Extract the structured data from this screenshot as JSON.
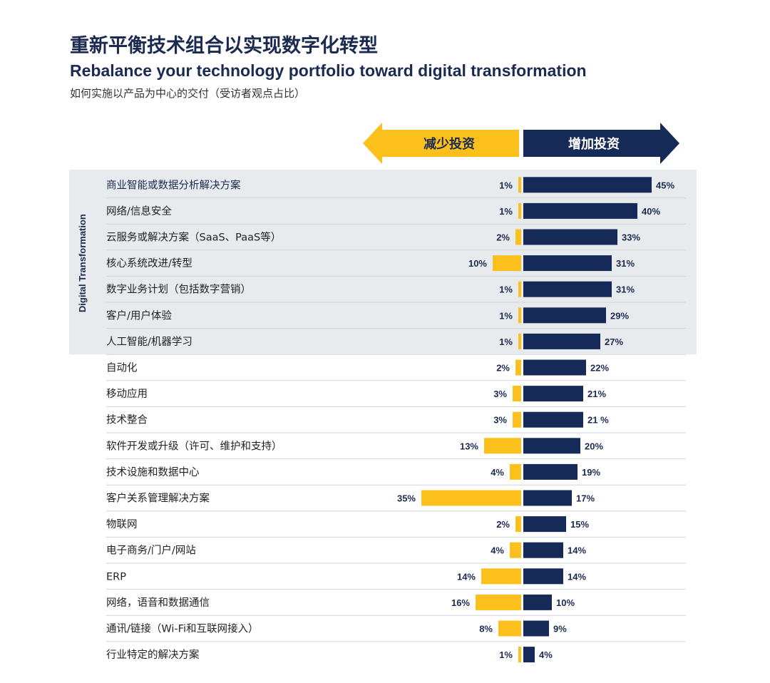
{
  "title": "重新平衡技术组合以实现数字化转型",
  "subtitle": "Rebalance your technology portfolio toward digital transformation",
  "note": "如何实施以产品为中心的交付（受访者观点占比）",
  "colors": {
    "decrease": "#fcc01d",
    "increase": "#152a57",
    "band": "#e8ebee",
    "divider": "#cfd4da"
  },
  "chart_data": {
    "type": "bar",
    "orientation": "horizontal-diverging",
    "legend": {
      "decrease": "减少投资",
      "increase": "增加投资"
    },
    "band_label": "Digital Transformation",
    "band_rows": 7,
    "categories": [
      "商业智能或数据分析解决方案",
      "网络/信息安全",
      "云服务或解决方案（SaaS、PaaS等）",
      "核心系统改进/转型",
      "数字业务计划（包括数字营销）",
      "客户/用户体验",
      "人工智能/机器学习",
      "自动化",
      "移动应用",
      "技术整合",
      "软件开发或升级（许可、维护和支持）",
      "技术设施和数据中心",
      "客户关系管理解决方案",
      "物联网",
      "电子商务/门户/网站",
      "ERP",
      "网络，语音和数据通信",
      "通讯/链接（Wi-Fi和互联网接入）",
      "行业特定的解决方案"
    ],
    "series": [
      {
        "name": "减少投资",
        "values": [
          1,
          1,
          2,
          10,
          1,
          1,
          1,
          2,
          3,
          3,
          13,
          4,
          35,
          2,
          4,
          14,
          16,
          8,
          1
        ]
      },
      {
        "name": "增加投资",
        "values": [
          45,
          40,
          33,
          31,
          31,
          29,
          27,
          22,
          21,
          21,
          20,
          19,
          17,
          15,
          14,
          14,
          10,
          9,
          4
        ]
      }
    ],
    "value_labels": {
      "decrease": [
        "1%",
        "1%",
        "2%",
        "10%",
        "1%",
        "1%",
        "1%",
        "2%",
        "3%",
        "3%",
        "13%",
        "4%",
        "35%",
        "2%",
        "4%",
        "14%",
        "16%",
        "8%",
        "1%"
      ],
      "increase": [
        "45%",
        "40%",
        "33%",
        "31%",
        "31%",
        "29%",
        "27%",
        "22%",
        "21%",
        "21 %",
        "20%",
        "19%",
        "17%",
        "15%",
        "14%",
        "14%",
        "10%",
        "9%",
        "4%"
      ]
    }
  }
}
